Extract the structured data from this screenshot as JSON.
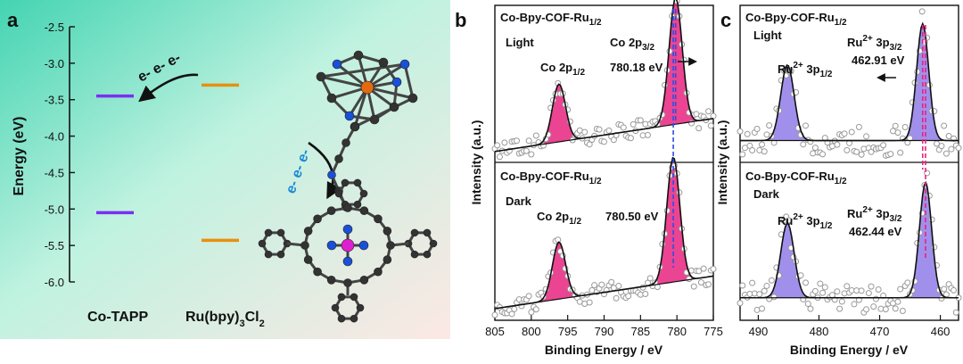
{
  "charts": [
    {
      "panel": "a",
      "type": "energy-level",
      "ylabel": "Energy (eV)",
      "ylim": [
        -6.0,
        -2.5
      ],
      "yticks": [
        "-2.5",
        "-3.0",
        "-3.5",
        "-4.0",
        "-4.5",
        "-5.0",
        "-5.5",
        "-6.0"
      ],
      "levels": [
        {
          "species": "Co-TAPP",
          "energy": -3.45,
          "color": "#7b2ff0"
        },
        {
          "species": "Co-TAPP",
          "energy": -5.05,
          "color": "#7b2ff0"
        },
        {
          "species": "Ru(bpy)3Cl2",
          "energy": -3.3,
          "color": "#e8900f"
        },
        {
          "species": "Ru(bpy)3Cl2",
          "energy": -5.43,
          "color": "#e8900f"
        }
      ],
      "xlabels": {
        "left": "Co-TAPP",
        "right_main": "Ru(bpy)",
        "right_sub": "3",
        "right_tail": "Cl",
        "right_sub2": "2"
      },
      "transfer_label_1": "e- e- e-",
      "transfer_label_2": "e- e- e-",
      "background_colors": [
        "#49d6b4",
        "#c9f4e4",
        "#fbe9e4"
      ]
    },
    {
      "panel": "b",
      "type": "xps",
      "xlabel": "Binding Energy / eV",
      "ylabel": "Intensity (a.u.)",
      "xlim": [
        805,
        775
      ],
      "xticks": [
        "805",
        "800",
        "795",
        "790",
        "785",
        "780",
        "775"
      ],
      "fill_color": "#e8237f",
      "line_color": "#e8237f",
      "top": {
        "sample": "Co-Bpy-COF-Ru",
        "sample_sub": "1/2",
        "condition": "Light",
        "peak1_main": "Co 2p",
        "peak1_sub": "1/2",
        "peak2_main": "Co 2p",
        "peak2_sub": "3/2",
        "peak2_value": "780.18 eV",
        "peak_positions": [
          796.2,
          780.18
        ],
        "arrow_direction": "right"
      },
      "bottom": {
        "sample": "Co-Bpy-COF-Ru",
        "sample_sub": "1/2",
        "condition": "Dark",
        "peak1_main": "Co 2p",
        "peak1_sub": "1/2",
        "peak2_value": "780.50 eV",
        "peak_positions": [
          796.2,
          780.5
        ]
      }
    },
    {
      "panel": "c",
      "type": "xps",
      "xlabel": "Binding Energy / eV",
      "ylabel": "Intensity (a.u.)",
      "xlim": [
        493,
        457
      ],
      "xticks": [
        "490",
        "480",
        "470",
        "460"
      ],
      "fill_color": "#8f7de8",
      "line_color": "#e8237f",
      "top": {
        "sample": "Co-Bpy-COF-Ru",
        "sample_sub": "1/2",
        "condition": "Light",
        "peak1_main": "Ru",
        "peak1_sup": "2+",
        "peak1_tail": " 3p",
        "peak1_sub": "1/2",
        "peak2_main": "Ru",
        "peak2_sup": "2+",
        "peak2_tail": " 3p",
        "peak2_sub": "3/2",
        "peak2_value": "462.91 eV",
        "peak_positions": [
          485.2,
          462.91
        ],
        "arrow_direction": "left"
      },
      "bottom": {
        "sample": "Co-Bpy-COF-Ru",
        "sample_sub": "1/2",
        "condition": "Dark",
        "peak1_main": "Ru",
        "peak1_sup": "2+",
        "peak1_tail": " 3p",
        "peak1_sub": "1/2",
        "peak2_main": "Ru",
        "peak2_sup": "2+",
        "peak2_tail": " 3p",
        "peak2_sub": "3/2",
        "peak2_value": "462.44 eV",
        "peak_positions": [
          485.2,
          462.44
        ]
      }
    }
  ],
  "chart_data": [
    {
      "type": "energy-level",
      "ylabel": "Energy (eV)",
      "ylim": [
        -6.0,
        -2.5
      ],
      "categories": [
        "Co-TAPP",
        "Ru(bpy)3Cl2"
      ],
      "series": [
        {
          "name": "Co-TAPP",
          "values": [
            -3.45,
            -5.05
          ]
        },
        {
          "name": "Ru(bpy)3Cl2",
          "values": [
            -3.3,
            -5.43
          ]
        }
      ]
    },
    {
      "type": "line",
      "xlabel": "Binding Energy / eV",
      "ylabel": "Intensity (a.u.)",
      "xlim": [
        805,
        775
      ],
      "peaks_light": [
        796.2,
        780.18
      ],
      "peaks_dark": [
        796.2,
        780.5
      ]
    },
    {
      "type": "line",
      "xlabel": "Binding Energy / eV",
      "ylabel": "Intensity (a.u.)",
      "xlim": [
        493,
        457
      ],
      "peaks_light": [
        485.2,
        462.91
      ],
      "peaks_dark": [
        485.2,
        462.44
      ]
    }
  ]
}
